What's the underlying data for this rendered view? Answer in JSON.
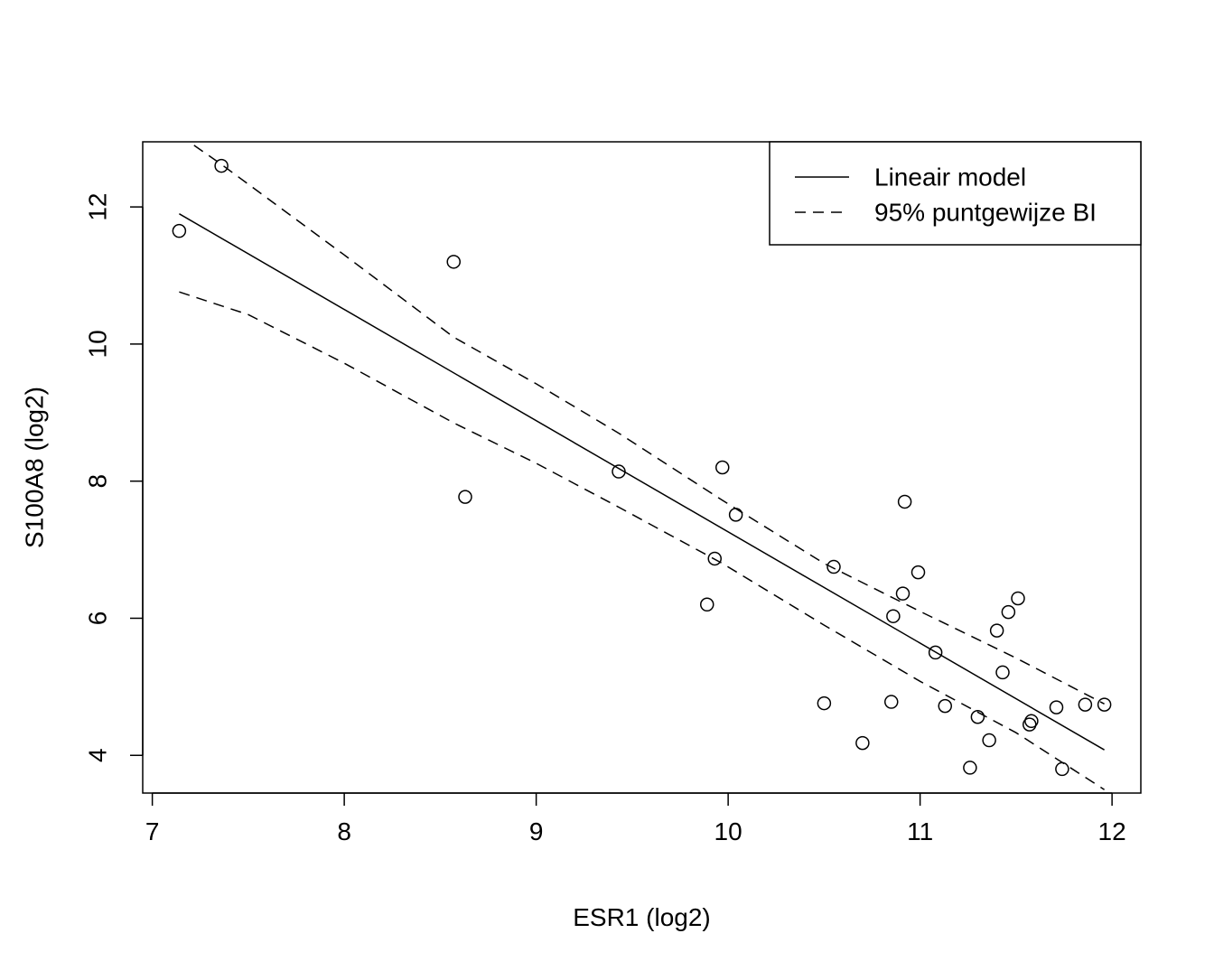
{
  "chart_data": {
    "type": "scatter",
    "title": "",
    "xlabel": "ESR1 (log2)",
    "ylabel": "S100A8 (log2)",
    "xlim": [
      6.95,
      12.15
    ],
    "ylim": [
      3.45,
      12.95
    ],
    "xticks": [
      7,
      8,
      9,
      10,
      11,
      12
    ],
    "yticks": [
      4,
      6,
      8,
      10,
      12
    ],
    "grid": false,
    "legend": {
      "position": "top-right",
      "entries": [
        {
          "label": "Lineair model",
          "style": "solid"
        },
        {
          "label": "95% puntgewijze BI",
          "style": "dashed"
        }
      ]
    },
    "points": [
      {
        "x": 7.14,
        "y": 11.65
      },
      {
        "x": 7.36,
        "y": 12.6
      },
      {
        "x": 8.57,
        "y": 11.2
      },
      {
        "x": 8.63,
        "y": 7.77
      },
      {
        "x": 9.43,
        "y": 8.14
      },
      {
        "x": 9.89,
        "y": 6.2
      },
      {
        "x": 9.93,
        "y": 6.87
      },
      {
        "x": 9.97,
        "y": 8.2
      },
      {
        "x": 10.04,
        "y": 7.51
      },
      {
        "x": 10.5,
        "y": 4.76
      },
      {
        "x": 10.55,
        "y": 6.75
      },
      {
        "x": 10.7,
        "y": 4.18
      },
      {
        "x": 10.85,
        "y": 4.78
      },
      {
        "x": 10.86,
        "y": 6.03
      },
      {
        "x": 10.91,
        "y": 6.36
      },
      {
        "x": 10.92,
        "y": 7.7
      },
      {
        "x": 10.99,
        "y": 6.67
      },
      {
        "x": 11.08,
        "y": 5.5
      },
      {
        "x": 11.13,
        "y": 4.72
      },
      {
        "x": 11.26,
        "y": 3.82
      },
      {
        "x": 11.3,
        "y": 4.56
      },
      {
        "x": 11.36,
        "y": 4.22
      },
      {
        "x": 11.4,
        "y": 5.82
      },
      {
        "x": 11.43,
        "y": 5.21
      },
      {
        "x": 11.46,
        "y": 6.09
      },
      {
        "x": 11.51,
        "y": 6.29
      },
      {
        "x": 11.57,
        "y": 4.45
      },
      {
        "x": 11.58,
        "y": 4.5
      },
      {
        "x": 11.71,
        "y": 4.7
      },
      {
        "x": 11.74,
        "y": 3.8
      },
      {
        "x": 11.86,
        "y": 4.74
      },
      {
        "x": 11.96,
        "y": 4.74
      }
    ],
    "fit_line": [
      {
        "x": 7.14,
        "y": 11.9
      },
      {
        "x": 11.96,
        "y": 4.08
      }
    ],
    "ci_upper": [
      {
        "x": 7.14,
        "y": 13.05
      },
      {
        "x": 7.36,
        "y": 12.62
      },
      {
        "x": 8.0,
        "y": 11.3
      },
      {
        "x": 8.57,
        "y": 10.1
      },
      {
        "x": 9.0,
        "y": 9.42
      },
      {
        "x": 9.43,
        "y": 8.7
      },
      {
        "x": 9.97,
        "y": 7.72
      },
      {
        "x": 10.5,
        "y": 6.8
      },
      {
        "x": 11.0,
        "y": 6.1
      },
      {
        "x": 11.5,
        "y": 5.42
      },
      {
        "x": 11.96,
        "y": 4.75
      }
    ],
    "ci_lower": [
      {
        "x": 7.14,
        "y": 10.76
      },
      {
        "x": 7.5,
        "y": 10.43
      },
      {
        "x": 8.0,
        "y": 9.72
      },
      {
        "x": 8.57,
        "y": 8.85
      },
      {
        "x": 9.0,
        "y": 8.26
      },
      {
        "x": 9.43,
        "y": 7.62
      },
      {
        "x": 9.97,
        "y": 6.8
      },
      {
        "x": 10.5,
        "y": 5.9
      },
      {
        "x": 11.0,
        "y": 5.08
      },
      {
        "x": 11.5,
        "y": 4.33
      },
      {
        "x": 11.96,
        "y": 3.5
      }
    ]
  }
}
